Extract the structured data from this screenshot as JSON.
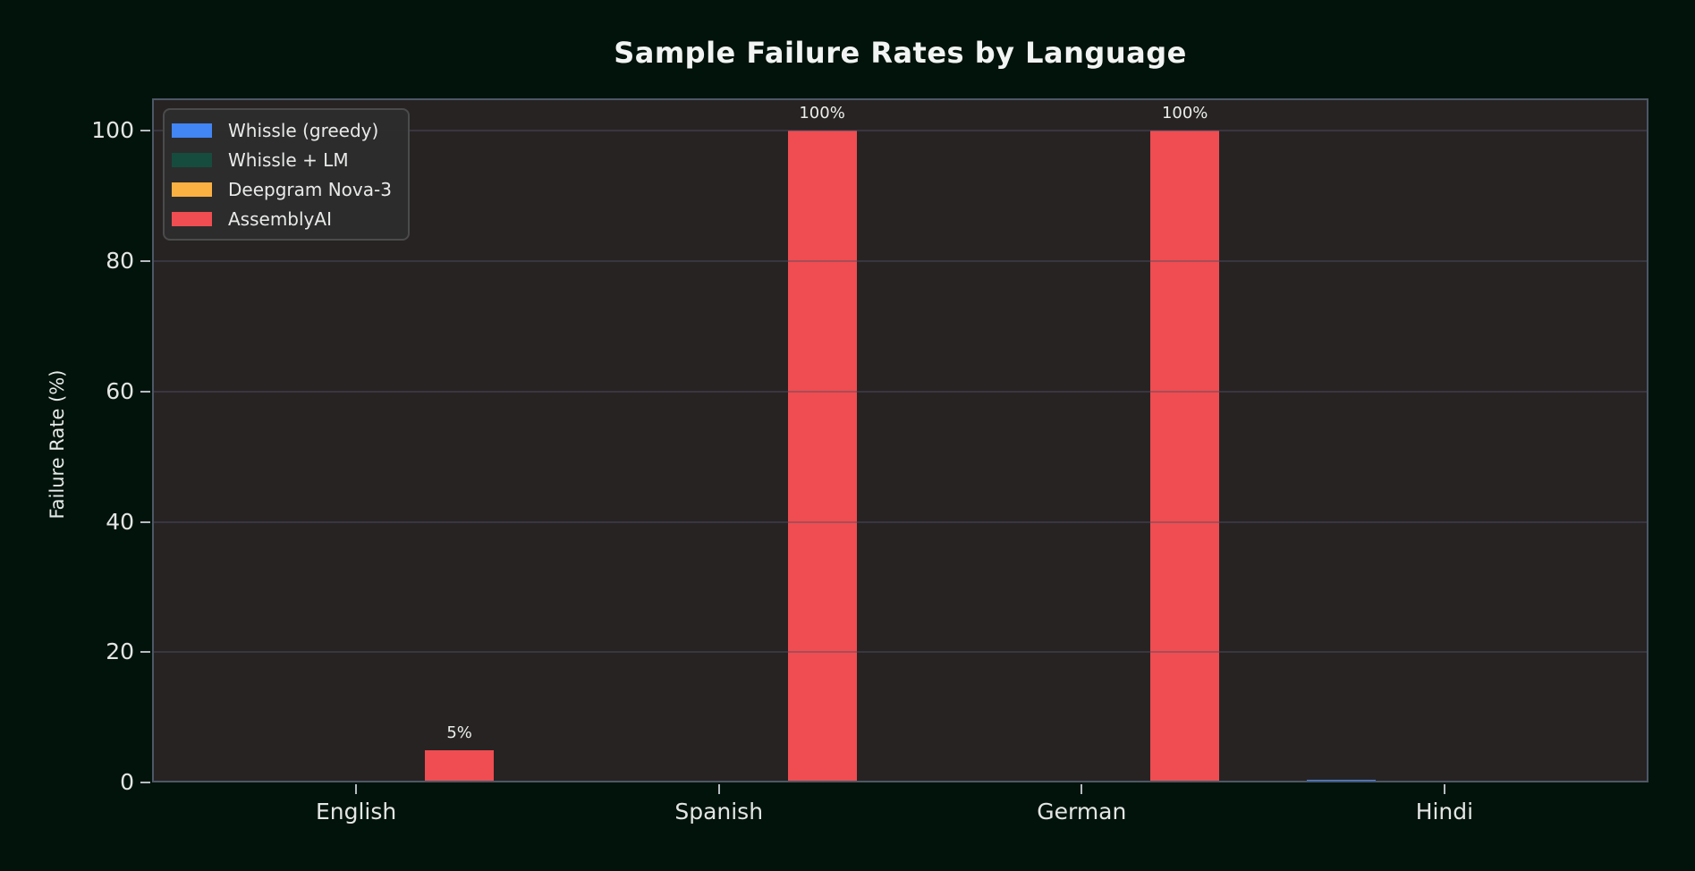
{
  "chart_data": {
    "type": "bar",
    "title": "Sample Failure Rates by Language",
    "ylabel": "Failure Rate (%)",
    "xlabel": "",
    "categories": [
      "English",
      "Spanish",
      "German",
      "Hindi"
    ],
    "series": [
      {
        "name": "Whissle (greedy)",
        "color": "#4285f4",
        "values": [
          0,
          0,
          0,
          0.4
        ],
        "labels": [
          "",
          "",
          "",
          ""
        ]
      },
      {
        "name": "Whissle + LM",
        "color": "#154c3d",
        "values": [
          0,
          0,
          0,
          0.3
        ],
        "labels": [
          "",
          "",
          "",
          ""
        ]
      },
      {
        "name": "Deepgram Nova-3",
        "color": "#fbb042",
        "values": [
          0,
          0,
          0,
          0
        ],
        "labels": [
          "",
          "",
          "",
          ""
        ]
      },
      {
        "name": "AssemblyAI",
        "color": "#ef4d51",
        "values": [
          5,
          100,
          100,
          0
        ],
        "labels": [
          "5%",
          "100%",
          "100%",
          ""
        ]
      }
    ],
    "yticks": [
      0,
      20,
      40,
      60,
      80,
      100
    ],
    "ylim": [
      0,
      105
    ],
    "grid": true,
    "legend_position": "upper-left"
  },
  "colors": {
    "figure_bg": "#02130b",
    "plot_bg": "#272323",
    "gridline": "rgba(80,78,100,0.45)",
    "spine": "#4d5766",
    "tick_text": "#e3e6e4",
    "title_text": "#f1f4f2",
    "annotation_text": "#eceeec",
    "legend_bg": "#2d2d2d",
    "legend_border": "#4b4b4b"
  }
}
